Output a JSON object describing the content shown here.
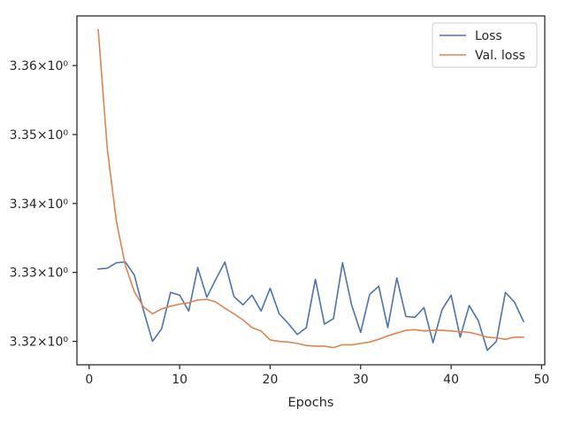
{
  "chart_data": {
    "type": "line",
    "xlabel": "Epochs",
    "ylabel": "",
    "xlim": [
      -1.35,
      50.35
    ],
    "ylim": [
      3.3166,
      3.3672
    ],
    "x_ticks": [
      0,
      10,
      20,
      30,
      40,
      50
    ],
    "y_ticks": [
      {
        "value": 3.32,
        "label": "3.32×10⁰"
      },
      {
        "value": 3.33,
        "label": "3.33×10⁰"
      },
      {
        "value": 3.34,
        "label": "3.34×10⁰"
      },
      {
        "value": 3.35,
        "label": "3.35×10⁰"
      },
      {
        "value": 3.36,
        "label": "3.36×10⁰"
      }
    ],
    "grid": false,
    "legend_position": "top-right",
    "x": [
      1,
      2,
      3,
      4,
      5,
      6,
      7,
      8,
      9,
      10,
      11,
      12,
      13,
      14,
      15,
      16,
      17,
      18,
      19,
      20,
      21,
      22,
      23,
      24,
      25,
      26,
      27,
      28,
      29,
      30,
      31,
      32,
      33,
      34,
      35,
      36,
      37,
      38,
      39,
      40,
      41,
      42,
      43,
      44,
      45,
      46,
      47,
      48
    ],
    "series": [
      {
        "name": "Loss",
        "color": "#4c72b0",
        "values": [
          3.3305,
          3.3306,
          3.3314,
          3.3315,
          3.3296,
          3.3245,
          3.32,
          3.3218,
          3.3271,
          3.3267,
          3.3244,
          3.3307,
          3.3264,
          3.329,
          3.3315,
          3.3265,
          3.3253,
          3.3267,
          3.3244,
          3.3277,
          3.324,
          3.3226,
          3.321,
          3.322,
          3.329,
          3.3225,
          3.3233,
          3.3314,
          3.3253,
          3.3213,
          3.3268,
          3.328,
          3.322,
          3.3292,
          3.3236,
          3.3235,
          3.3249,
          3.3198,
          3.3246,
          3.3267,
          3.3206,
          3.3252,
          3.323,
          3.3187,
          3.32,
          3.3271,
          3.3257,
          3.3229
        ]
      },
      {
        "name": "Val. loss",
        "color": "#dd8452",
        "values": [
          3.3652,
          3.348,
          3.3375,
          3.331,
          3.3272,
          3.325,
          3.324,
          3.3247,
          3.3251,
          3.3254,
          3.3256,
          3.326,
          3.3261,
          3.3257,
          3.3248,
          3.324,
          3.3231,
          3.322,
          3.3215,
          3.3202,
          3.32,
          3.3199,
          3.3197,
          3.3194,
          3.3193,
          3.3193,
          3.3191,
          3.3195,
          3.3195,
          3.3197,
          3.3199,
          3.3203,
          3.3208,
          3.3212,
          3.3216,
          3.3217,
          3.3215,
          3.3216,
          3.3216,
          3.3215,
          3.3214,
          3.3213,
          3.321,
          3.3206,
          3.3205,
          3.3203,
          3.3206,
          3.3206
        ]
      }
    ]
  }
}
